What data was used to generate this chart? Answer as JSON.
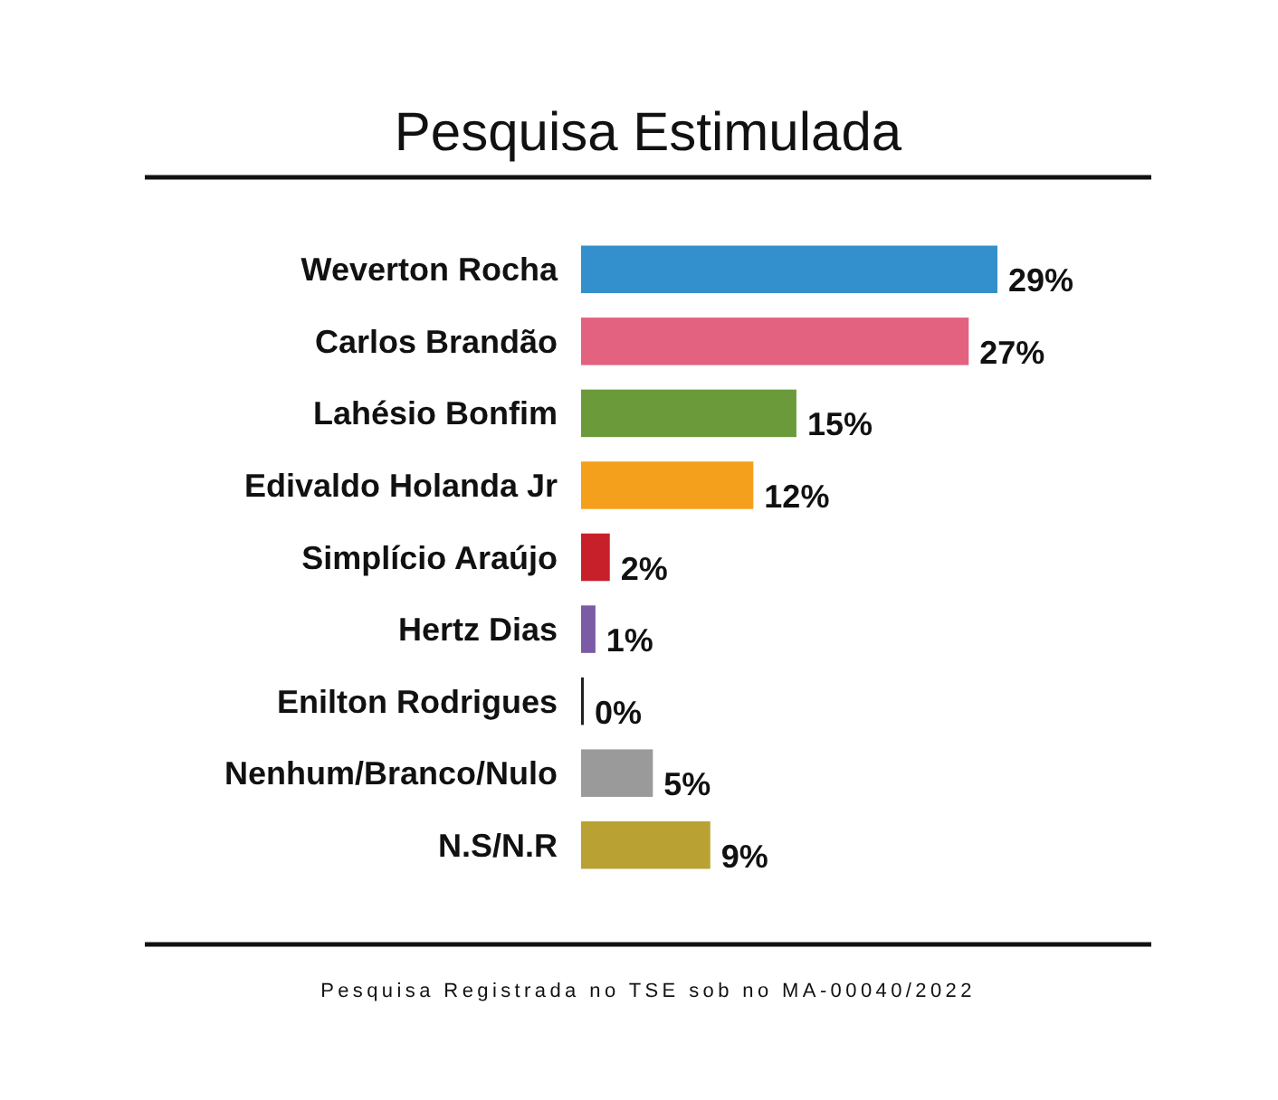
{
  "chart_data": {
    "type": "bar",
    "orientation": "horizontal",
    "title": "Pesquisa Estimulada",
    "categories": [
      "Weverton Rocha",
      "Carlos Brandão",
      "Lahésio Bonfim",
      "Edivaldo Holanda Jr",
      "Simplício Araújo",
      "Hertz Dias",
      "Enilton Rodrigues",
      "Nenhum/Branco/Nulo",
      "N.S/N.R"
    ],
    "values": [
      29,
      27,
      15,
      12,
      2,
      1,
      0,
      5,
      9
    ],
    "value_labels": [
      "29%",
      "27%",
      "15%",
      "12%",
      "2%",
      "1%",
      "0%",
      "5%",
      "9%"
    ],
    "colors": [
      "#3390cc",
      "#e3627f",
      "#6a9a3a",
      "#f5a01c",
      "#c8202a",
      "#7b5aa6",
      "#222222",
      "#9a9a9a",
      "#b9a233"
    ],
    "annotations": [
      "Pesquisa Registrada no TSE sob no MA-00040/2022"
    ]
  }
}
